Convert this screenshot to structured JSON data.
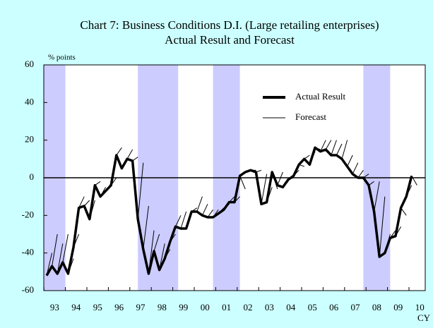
{
  "chart_data": {
    "type": "line",
    "title": "Chart 7: Business Conditions D.I. (Large retailing enterprises)",
    "subtitle": "Actual Result and Forecast",
    "y_label": "% points",
    "x_unit_label": "CY",
    "year_labels": [
      "93",
      "94",
      "95",
      "96",
      "97",
      "98",
      "99",
      "00",
      "01",
      "02",
      "03",
      "04",
      "05",
      "06",
      "07",
      "08",
      "09",
      "10"
    ],
    "shaded_periods": [
      [
        -0.5,
        3.5
      ],
      [
        17,
        24.5
      ],
      [
        31,
        36
      ],
      [
        59,
        64
      ]
    ],
    "shade_color": "#ccccff",
    "ylim": [
      -60,
      60
    ],
    "yticks": [
      -60,
      -40,
      -20,
      0,
      20,
      40,
      60
    ],
    "series": [
      {
        "name": "Actual Result",
        "color": "#000000",
        "values": [
          -52,
          -47,
          -51,
          -45,
          -51,
          -37,
          -16,
          -15,
          -22,
          -4,
          -10,
          -7,
          -4,
          12,
          5,
          10,
          9,
          -22,
          -38,
          -51,
          -39,
          -49,
          -43,
          -34,
          -26,
          -27,
          -27,
          -18,
          -18,
          -20,
          -21,
          -21,
          -19,
          -17,
          -13,
          -13,
          1,
          3,
          4,
          3,
          -14,
          -13,
          3,
          -4,
          -5,
          -1,
          1,
          7,
          10,
          7,
          16,
          14,
          15,
          12,
          12,
          10,
          6,
          2,
          0,
          0,
          -4,
          -18,
          -42,
          -40,
          -32,
          -31,
          -16,
          -10,
          1
        ]
      },
      {
        "name": "Forecast",
        "color": "#000000",
        "values": [
          null,
          -40,
          -30,
          -35,
          -30,
          -43,
          -30,
          -10,
          -12,
          -12,
          -2,
          -5,
          -3,
          0,
          16,
          10,
          15,
          11,
          8,
          -15,
          -28,
          -30,
          -35,
          -38,
          -30,
          -20,
          -18,
          -18,
          -16,
          -10,
          -14,
          -17,
          -17,
          -16,
          -14,
          -10,
          -10,
          -6,
          4,
          4,
          4,
          2,
          -5,
          -6,
          3,
          -2,
          0,
          4,
          6,
          12,
          14,
          15,
          20,
          20,
          20,
          18,
          20,
          12,
          8,
          4,
          2,
          -2,
          -2,
          -10,
          -30,
          -28,
          -26,
          -20,
          -4,
          -4,
          -6
        ]
      }
    ]
  }
}
